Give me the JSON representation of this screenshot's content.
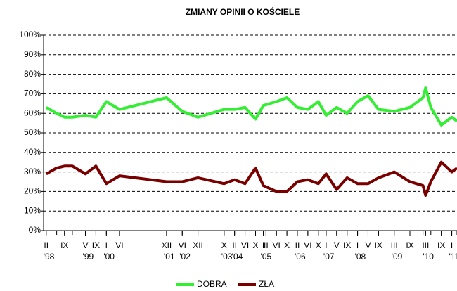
{
  "chart_data": {
    "type": "line",
    "title": "ZMIANY OPINII O KOŚCIELE",
    "x": [
      "1998-02",
      "1998-06",
      "1998-09",
      "1998-12",
      "1999-05",
      "1999-09",
      "2000-01",
      "2000-06",
      "2001-12",
      "2002-06",
      "2002-12",
      "2003-10",
      "2004-02",
      "2004-06",
      "2004-10",
      "2005-01",
      "2005-06",
      "2005-10",
      "2006-02",
      "2006-06",
      "2006-10",
      "2007-01",
      "2007-05",
      "2007-09",
      "2008-01",
      "2008-05",
      "2008-09",
      "2009-03",
      "2009-09",
      "2010-02",
      "2010-03",
      "2010-05",
      "2010-09",
      "2011-01",
      "2011-03"
    ],
    "series": [
      {
        "name": "DOBRA",
        "color": "#33ee33",
        "values": [
          63,
          60,
          58,
          58,
          59,
          58,
          66,
          62,
          68,
          61,
          58,
          62,
          62,
          63,
          57,
          64,
          66,
          68,
          63,
          62,
          66,
          59,
          63,
          60,
          66,
          69,
          62,
          61,
          63,
          68,
          73,
          63,
          54,
          58,
          56
        ]
      },
      {
        "name": "ZŁA",
        "color": "#7a0000",
        "values": [
          29,
          32,
          33,
          33,
          29,
          33,
          24,
          28,
          25,
          25,
          27,
          24,
          26,
          24,
          32,
          23,
          20,
          20,
          25,
          26,
          24,
          29,
          21,
          27,
          24,
          24,
          27,
          30,
          25,
          23,
          18,
          25,
          35,
          30,
          32
        ]
      }
    ],
    "xlim": [
      "1998-01",
      "2011-03"
    ],
    "xticks": [
      {
        "value": "1998-02",
        "label": "II"
      },
      {
        "value": "1998-09",
        "label": "IX"
      },
      {
        "value": "1999-05",
        "label": "V"
      },
      {
        "value": "1999-09",
        "label": "IX"
      },
      {
        "value": "2000-01",
        "label": "I"
      },
      {
        "value": "2000-06",
        "label": "VI"
      },
      {
        "value": "2001-12",
        "label": "XII"
      },
      {
        "value": "2002-06",
        "label": "VI"
      },
      {
        "value": "2002-12",
        "label": "XII"
      },
      {
        "value": "2003-10",
        "label": "X"
      },
      {
        "value": "2004-02",
        "label": "II"
      },
      {
        "value": "2004-06",
        "label": "VI"
      },
      {
        "value": "2004-10",
        "label": "X"
      },
      {
        "value": "2005-01",
        "label": "I"
      },
      {
        "value": "2005-02",
        "label": "II"
      },
      {
        "value": "2005-06",
        "label": "VI"
      },
      {
        "value": "2005-10",
        "label": "X"
      },
      {
        "value": "2006-02",
        "label": "II"
      },
      {
        "value": "2006-06",
        "label": "VI"
      },
      {
        "value": "2006-10",
        "label": "X"
      },
      {
        "value": "2007-01",
        "label": "I"
      },
      {
        "value": "2007-05",
        "label": "V"
      },
      {
        "value": "2007-09",
        "label": "IX"
      },
      {
        "value": "2008-01",
        "label": "I"
      },
      {
        "value": "2008-05",
        "label": "V"
      },
      {
        "value": "2008-09",
        "label": "IX"
      },
      {
        "value": "2009-03",
        "label": "III"
      },
      {
        "value": "2009-09",
        "label": "IX"
      },
      {
        "value": "2010-03",
        "label": "III"
      },
      {
        "value": "2010-09",
        "label": "IX"
      },
      {
        "value": "2011-01",
        "label": "I"
      }
    ],
    "xyears": [
      {
        "value": "1998-02",
        "label": "'98"
      },
      {
        "value": "1999-05",
        "label": "'99"
      },
      {
        "value": "2000-01",
        "label": "'00"
      },
      {
        "value": "2001-12",
        "label": "'01"
      },
      {
        "value": "2002-06",
        "label": "'02"
      },
      {
        "value": "2003-10",
        "label": "'03"
      },
      {
        "value": "2004-02",
        "label": "'04"
      },
      {
        "value": "2005-01",
        "label": "'05"
      },
      {
        "value": "2006-02",
        "label": "'06"
      },
      {
        "value": "2007-01",
        "label": "'07"
      },
      {
        "value": "2008-01",
        "label": "'08"
      },
      {
        "value": "2009-03",
        "label": "'09"
      },
      {
        "value": "2010-03",
        "label": "'10"
      },
      {
        "value": "2011-01",
        "label": "'11"
      }
    ],
    "ylim": [
      0,
      100
    ],
    "yticks": [
      {
        "value": 0,
        "label": "0%"
      },
      {
        "value": 10,
        "label": "10%"
      },
      {
        "value": 20,
        "label": "20%"
      },
      {
        "value": 30,
        "label": "30%"
      },
      {
        "value": 40,
        "label": "40%"
      },
      {
        "value": 50,
        "label": "50%"
      },
      {
        "value": 60,
        "label": "60%"
      },
      {
        "value": 70,
        "label": "70%"
      },
      {
        "value": 80,
        "label": "80%"
      },
      {
        "value": 90,
        "label": "90%"
      },
      {
        "value": 100,
        "label": "100%"
      }
    ],
    "grid": true,
    "legend": "bottom"
  }
}
